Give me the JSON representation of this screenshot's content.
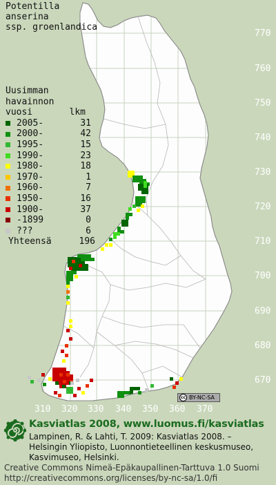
{
  "species": {
    "title_line1": "Potentilla",
    "title_line2": "anserina",
    "title_line3": "ssp. groenlandica"
  },
  "legend": {
    "header_line1": "Uusimman",
    "header_line2": "havainnon",
    "header_col1": "vuosi",
    "header_col2": "lkm",
    "rows": [
      {
        "label": "2005-",
        "count": "31",
        "color": "#006400"
      },
      {
        "label": "2000-",
        "count": "42",
        "color": "#109010"
      },
      {
        "label": "1995-",
        "count": "15",
        "color": "#30b830"
      },
      {
        "label": "1990-",
        "count": "23",
        "color": "#40dd20"
      },
      {
        "label": "1980-",
        "count": "18",
        "color": "#ffff00"
      },
      {
        "label": "1970-",
        "count": "1",
        "color": "#ffc800"
      },
      {
        "label": "1960-",
        "count": "7",
        "color": "#f07000"
      },
      {
        "label": "1950-",
        "count": "16",
        "color": "#e83000"
      },
      {
        "label": "1900-",
        "count": "37",
        "color": "#c80000"
      },
      {
        "label": "-1899",
        "count": "0",
        "color": "#880000"
      },
      {
        "label": "???",
        "count": "6",
        "color": "#c8c8c8"
      }
    ],
    "total_label": "Yhteensä",
    "total_count": "196"
  },
  "grid_axes": {
    "y_labels": [
      "770",
      "760",
      "750",
      "740",
      "730",
      "720",
      "710",
      "700",
      "690",
      "680",
      "670"
    ],
    "x_labels": [
      "310",
      "320",
      "330",
      "340",
      "350",
      "360",
      "370"
    ]
  },
  "colors": {
    "background": "#cad7bb",
    "land": "#fdfdfd",
    "grid": "#c8d2be",
    "border": "#8a8a8a"
  },
  "badge": {
    "text": "BY-NC-SA",
    "logo": "cc"
  },
  "footer": {
    "atlas_title": "Kasviatlas 2008, www.luomus.fi/kasviatlas",
    "citation": "Lampinen, R. & Lahti, T. 2009: Kasviatlas 2008. – Helsingin Yliopisto, Luonnontieteellinen keskusmuseo, Kasvimuseo, Helsinki.",
    "license_line1": "Creative Commons Nimeä-Epäkaupallinen-Tarttuva 1.0 Suomi",
    "license_line2": "http://creativecommons.org/licenses/by-nc-sa/1.0/fi",
    "logo_icon": "spiral-plant-icon"
  }
}
